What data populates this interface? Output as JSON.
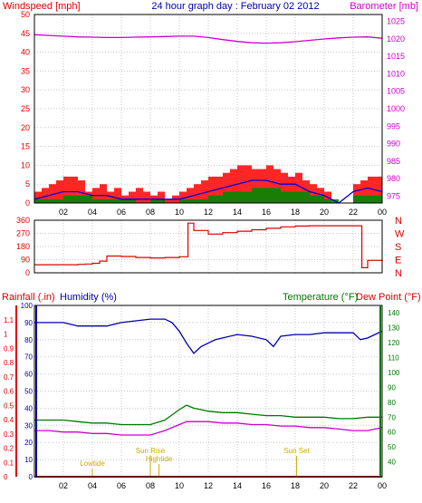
{
  "colors": {
    "red": "#dd0000",
    "blue": "#0000aa",
    "green": "#007700",
    "magenta": "#cc00cc",
    "gust": "#ff0000",
    "avg": "#0000dd",
    "windgreen": "#008800",
    "yellow": "#ccaa00",
    "grid": "#c8c8c8",
    "axis": "#000000"
  },
  "header": {
    "left_label": "Windspeed [mph]",
    "title": "24 hour graph day : February 02 2012",
    "right_label": "Barometer [mb]"
  },
  "bottom_header": {
    "rain_label": "Rainfall (.in)",
    "humidity_label": "Humidity (%)",
    "temp_label": "Temperature (°F)",
    "dew_label": "Dew Point (°F)"
  },
  "x_ticks": [
    "02",
    "04",
    "06",
    "08",
    "10",
    "12",
    "14",
    "16",
    "18",
    "20",
    "22",
    "00"
  ],
  "wind_axis": {
    "ticks": [
      "50",
      "45",
      "40",
      "35",
      "30",
      "25",
      "20",
      "15",
      "10",
      "5",
      "0"
    ],
    "ylim": [
      0,
      50
    ]
  },
  "baro_axis": {
    "ticks": [
      "1025",
      "1020",
      "1015",
      "1010",
      "1005",
      "1000",
      "995",
      "990",
      "985",
      "980",
      "975"
    ],
    "ylim": [
      973,
      1027
    ]
  },
  "dir_axis": {
    "ticks": [
      "360",
      "270",
      "180",
      "90",
      "0"
    ],
    "compass": [
      "N",
      "W",
      "S",
      "E",
      "N"
    ],
    "ylim": [
      0,
      360
    ]
  },
  "hum_axis": {
    "ticks": [
      "100",
      "90",
      "80",
      "70",
      "60",
      "50",
      "40",
      "30",
      "20",
      "10",
      "0"
    ],
    "ylim": [
      0,
      100
    ]
  },
  "rain_axis": {
    "ticks": [
      "1.1",
      "1",
      "0.9",
      "0.8",
      "0.7",
      "0.6",
      "0.5",
      "0.4",
      "0.3",
      "0.2",
      "0.1",
      "0"
    ],
    "ylim": [
      0,
      1.2
    ]
  },
  "temp_axis": {
    "ticks": [
      "140",
      "130",
      "120",
      "110",
      "100",
      "90",
      "80",
      "70",
      "60",
      "50",
      "40"
    ],
    "ylim": [
      30,
      145
    ]
  },
  "events": [
    {
      "label": "Lowtide",
      "hour": 4.0
    },
    {
      "label": "Sun Rise",
      "hour": 8.0
    },
    {
      "label": "Hightide",
      "hour": 8.6
    },
    {
      "label": "Sun Set",
      "hour": 18.1
    }
  ],
  "chart_data": [
    {
      "type": "line",
      "title": "24 hour graph day : February 02 2012",
      "xlabel": "",
      "ylabel": "Windspeed [mph]",
      "y2label": "Barometer [mb]",
      "x_range_hours": [
        0,
        24
      ],
      "series": [
        {
          "name": "Gust",
          "hours": [
            0,
            0.5,
            1,
            1.5,
            2,
            2.5,
            3,
            3.5,
            4,
            4.5,
            5,
            5.5,
            6,
            6.5,
            7,
            7.5,
            8,
            8.5,
            9,
            9.5,
            10,
            10.5,
            11,
            11.5,
            12,
            12.5,
            13,
            13.5,
            14,
            14.5,
            15,
            15.5,
            16,
            16.5,
            17,
            17.5,
            18,
            18.5,
            19,
            19.5,
            20,
            20.5,
            21,
            21.5,
            22,
            22.5,
            23,
            23.5,
            24
          ],
          "values": [
            3,
            4,
            5,
            6,
            7,
            7,
            6,
            3,
            4,
            5,
            3,
            4,
            2,
            3,
            4,
            3,
            2,
            3,
            1,
            2,
            3,
            4,
            5,
            6,
            7,
            7,
            8,
            9,
            10,
            10,
            9,
            9,
            10,
            9,
            8,
            7,
            8,
            6,
            5,
            4,
            3,
            0,
            0,
            0,
            5,
            6,
            7,
            7,
            6
          ]
        },
        {
          "name": "Average",
          "hours": [
            0,
            1,
            2,
            3,
            4,
            5,
            6,
            7,
            8,
            9,
            10,
            11,
            12,
            13,
            14,
            15,
            16,
            17,
            18,
            19,
            20,
            21,
            22,
            23,
            24
          ],
          "values": [
            1,
            2,
            3,
            3,
            2,
            2,
            1,
            1,
            1,
            1,
            1,
            2,
            3,
            4,
            5,
            6,
            6,
            5,
            5,
            3,
            2,
            0,
            3,
            4,
            3
          ]
        },
        {
          "name": "Wind",
          "hours": [
            0,
            1,
            2,
            3,
            4,
            5,
            6,
            7,
            8,
            9,
            10,
            11,
            12,
            13,
            14,
            15,
            16,
            17,
            18,
            19,
            20,
            21,
            22,
            23,
            24
          ],
          "values": [
            1,
            1,
            2,
            2,
            1,
            1,
            1,
            0,
            1,
            0,
            1,
            1,
            2,
            3,
            3,
            4,
            4,
            3,
            3,
            2,
            1,
            0,
            2,
            2,
            2
          ]
        },
        {
          "name": "Barometer",
          "hours": [
            0,
            1,
            2,
            3,
            4,
            5,
            6,
            7,
            8,
            9,
            10,
            11,
            12,
            13,
            14,
            15,
            16,
            17,
            18,
            19,
            20,
            21,
            22,
            23,
            24
          ],
          "values": [
            1021.2,
            1021.0,
            1020.8,
            1020.6,
            1020.5,
            1020.4,
            1020.4,
            1020.5,
            1020.6,
            1020.7,
            1020.8,
            1020.8,
            1020.4,
            1019.8,
            1019.3,
            1018.9,
            1018.8,
            1018.9,
            1019.2,
            1019.6,
            1020.0,
            1020.3,
            1020.5,
            1020.6,
            1020.2
          ]
        }
      ]
    },
    {
      "type": "line",
      "ylabel": "Wind direction",
      "ylim": [
        0,
        360
      ],
      "series": [
        {
          "name": "Direction",
          "hours": [
            0,
            1,
            2,
            3,
            3.5,
            4,
            4.5,
            5,
            6,
            7,
            8,
            9,
            10,
            10.5,
            10.6,
            11,
            12,
            13,
            14,
            15,
            16,
            17,
            18,
            19,
            20,
            21,
            22,
            22.5,
            22.6,
            23,
            24
          ],
          "values": [
            55,
            55,
            55,
            58,
            60,
            65,
            80,
            115,
            112,
            105,
            102,
            105,
            110,
            110,
            340,
            290,
            265,
            275,
            285,
            295,
            305,
            315,
            320,
            322,
            322,
            322,
            322,
            322,
            35,
            85,
            95
          ]
        }
      ]
    },
    {
      "type": "line",
      "ylabel": "Humidity (%)",
      "ylim": [
        0,
        100
      ],
      "series": [
        {
          "name": "Humidity",
          "hours": [
            0,
            1,
            2,
            3,
            4,
            5,
            6,
            7,
            8,
            9,
            9.5,
            10,
            10.5,
            11,
            11.5,
            12,
            12.5,
            13,
            14,
            15,
            16,
            16.5,
            17,
            18,
            19,
            20,
            21,
            22,
            22.5,
            23,
            24
          ],
          "values": [
            90,
            90,
            90,
            88,
            88,
            88,
            90,
            91,
            92,
            92,
            90,
            85,
            78,
            72,
            76,
            78,
            80,
            81,
            83,
            82,
            80,
            76,
            82,
            83,
            83,
            84,
            84,
            84,
            80,
            81,
            85
          ]
        },
        {
          "name": "Temperature",
          "hours": [
            0,
            1,
            2,
            3,
            4,
            5,
            6,
            7,
            8,
            9,
            10,
            10.5,
            11,
            11.5,
            12,
            13,
            14,
            15,
            16,
            17,
            18,
            19,
            20,
            21,
            22,
            23,
            24
          ],
          "values": [
            68,
            68,
            68,
            67,
            66,
            66,
            65,
            65,
            65,
            68,
            75,
            78,
            76,
            75,
            74,
            73,
            73,
            72,
            71,
            71,
            70,
            70,
            70,
            69,
            69,
            70,
            70
          ]
        },
        {
          "name": "Dew Point",
          "hours": [
            0,
            1,
            2,
            3,
            4,
            5,
            6,
            7,
            8,
            9,
            10,
            10.5,
            11,
            12,
            13,
            14,
            15,
            16,
            17,
            18,
            19,
            20,
            21,
            22,
            23,
            24
          ],
          "values": [
            61,
            61,
            60,
            60,
            59,
            59,
            58,
            58,
            58,
            61,
            65,
            67,
            67,
            67,
            66,
            66,
            65,
            65,
            64,
            64,
            63,
            63,
            62,
            61,
            61,
            63
          ]
        },
        {
          "name": "Rainfall",
          "hours": [
            0,
            24
          ],
          "values": [
            0,
            0
          ]
        }
      ]
    }
  ]
}
